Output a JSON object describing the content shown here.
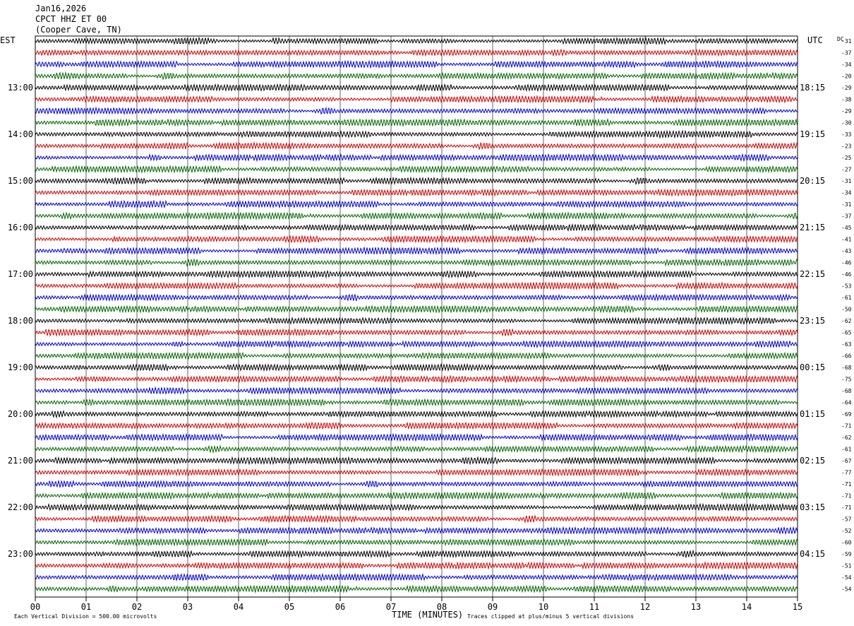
{
  "header": {
    "date": "Jan16,2026",
    "station": "CPCT HHZ ET 00",
    "location": "(Cooper Cave, TN)"
  },
  "left_zone_label": "EST",
  "right_zone_label": "UTC",
  "dc_label": "DC",
  "footer": {
    "x_axis_title": "TIME (MINUTES)",
    "scale_note": "Each Vertical Division =  500.00 microvolts",
    "clip_note": "Traces clipped at plus/minus 5 vertical divisions"
  },
  "chart_data": {
    "type": "line",
    "title": "",
    "xlabel": "TIME (MINUTES)",
    "xlim": [
      0,
      15
    ],
    "x_ticks": [
      "00",
      "01",
      "02",
      "03",
      "04",
      "05",
      "06",
      "07",
      "08",
      "09",
      "10",
      "11",
      "12",
      "13",
      "14",
      "15"
    ],
    "trace_colors": [
      "#000000",
      "#cc0000",
      "#0000cc",
      "#006600"
    ],
    "left_hour_labels": [
      "13:00",
      "14:00",
      "15:00",
      "16:00",
      "17:00",
      "18:00",
      "19:00",
      "20:00",
      "21:00",
      "22:00",
      "23:00"
    ],
    "right_hour_labels": [
      "18:15",
      "19:15",
      "20:15",
      "21:15",
      "22:15",
      "23:15",
      "00:15",
      "01:15",
      "02:15",
      "03:15",
      "04:15"
    ],
    "dc_offsets": [
      -31,
      -37,
      -34,
      -20,
      -29,
      -38,
      -29,
      -30,
      -33,
      -23,
      -25,
      -27,
      -31,
      -34,
      -31,
      -37,
      -45,
      -41,
      -43,
      -46,
      -46,
      -53,
      -61,
      -50,
      -62,
      -65,
      -63,
      -66,
      -68,
      -75,
      -68,
      -64,
      -69,
      -71,
      -62,
      -61,
      -67,
      -77,
      -71,
      -71,
      -71,
      -57,
      -52,
      -60,
      -59,
      -51,
      -54,
      -54
    ]
  }
}
